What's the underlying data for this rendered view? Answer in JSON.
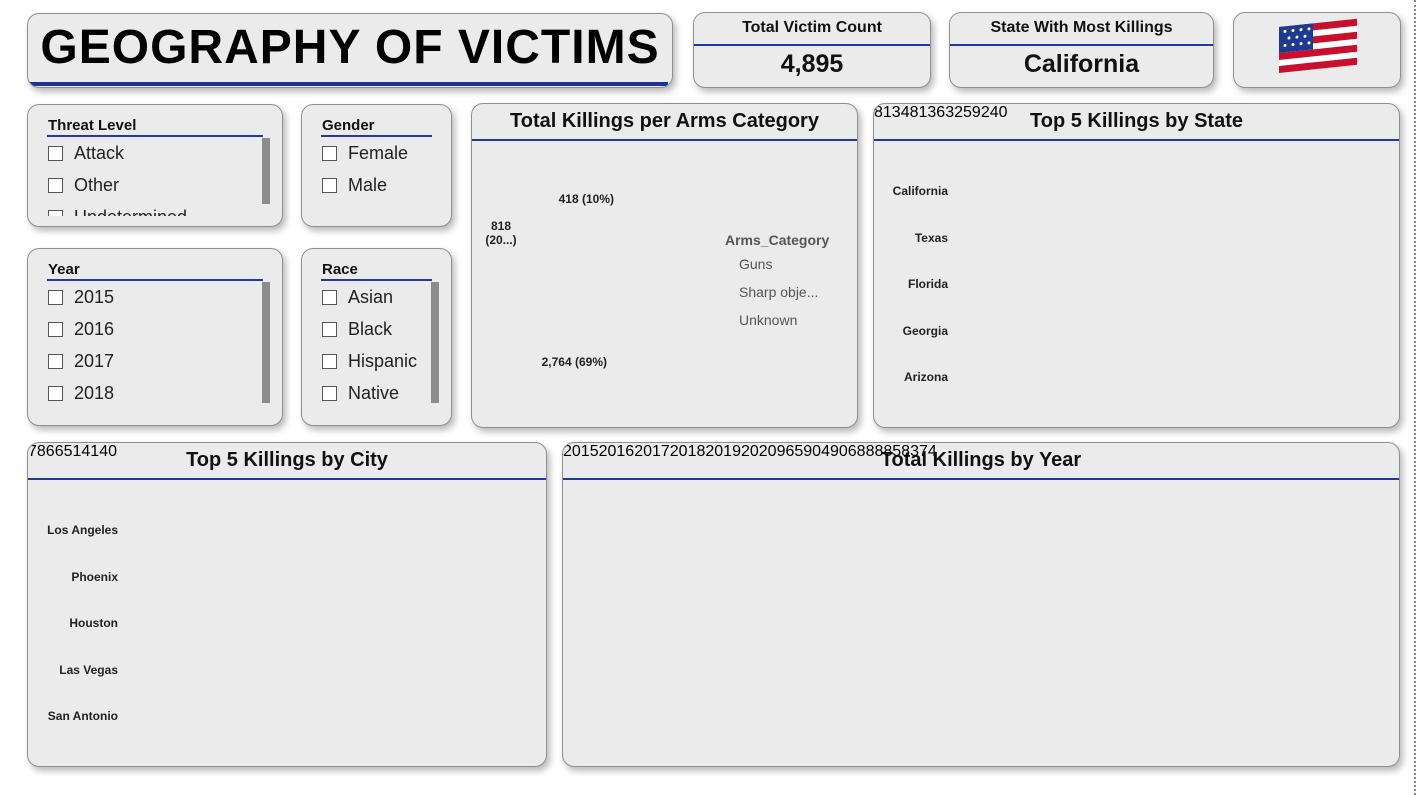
{
  "header": {
    "title": "GEOGRAPHY OF VICTIMS"
  },
  "cards": [
    {
      "label": "Total Victim Count",
      "value": "4,895"
    },
    {
      "label": "State With Most Killings",
      "value": "California"
    }
  ],
  "slicers": [
    {
      "title": "Threat Level",
      "items": [
        "Attack",
        "Other",
        "Undetermined"
      ]
    },
    {
      "title": "Gender",
      "items": [
        "Female",
        "Male"
      ]
    },
    {
      "title": "Year",
      "items": [
        "2015",
        "2016",
        "2017",
        "2018"
      ]
    },
    {
      "title": "Race",
      "items": [
        "Asian",
        "Black",
        "Hispanic",
        "Native"
      ]
    }
  ],
  "chart_data": [
    {
      "type": "donut",
      "title": "Total Killings per Arms Category",
      "legend_title": "Arms_Category",
      "categories": [
        "Guns",
        "Sharp obje...",
        "Unknown"
      ],
      "values": [
        2764,
        818,
        418
      ],
      "value_labels": [
        "2,764 (69%)",
        "818 (20...)",
        "418 (10%)"
      ],
      "colors": [
        "#12239e",
        "#1e8cff",
        "#6fb6f7"
      ]
    },
    {
      "type": "bar",
      "orientation": "horizontal",
      "title": "Top 5 Killings by State",
      "categories": [
        "California",
        "Texas",
        "Florida",
        "Georgia",
        "Arizona"
      ],
      "values": [
        813,
        481,
        363,
        259,
        240
      ],
      "color": "#12239e"
    },
    {
      "type": "bar",
      "orientation": "horizontal",
      "title": "Top 5 Killings by City",
      "categories": [
        "Los Angeles",
        "Phoenix",
        "Houston",
        "Las Vegas",
        "San Antonio"
      ],
      "values": [
        78,
        66,
        51,
        41,
        40
      ],
      "color": "#12239e"
    },
    {
      "type": "area",
      "title": "Total Killings by Year",
      "x": [
        2015,
        2016,
        2017,
        2018,
        2019,
        2020
      ],
      "values": [
        965,
        904,
        906,
        888,
        858,
        374
      ],
      "color": "#2b8cf3",
      "fill": "#9cc8ef"
    }
  ]
}
